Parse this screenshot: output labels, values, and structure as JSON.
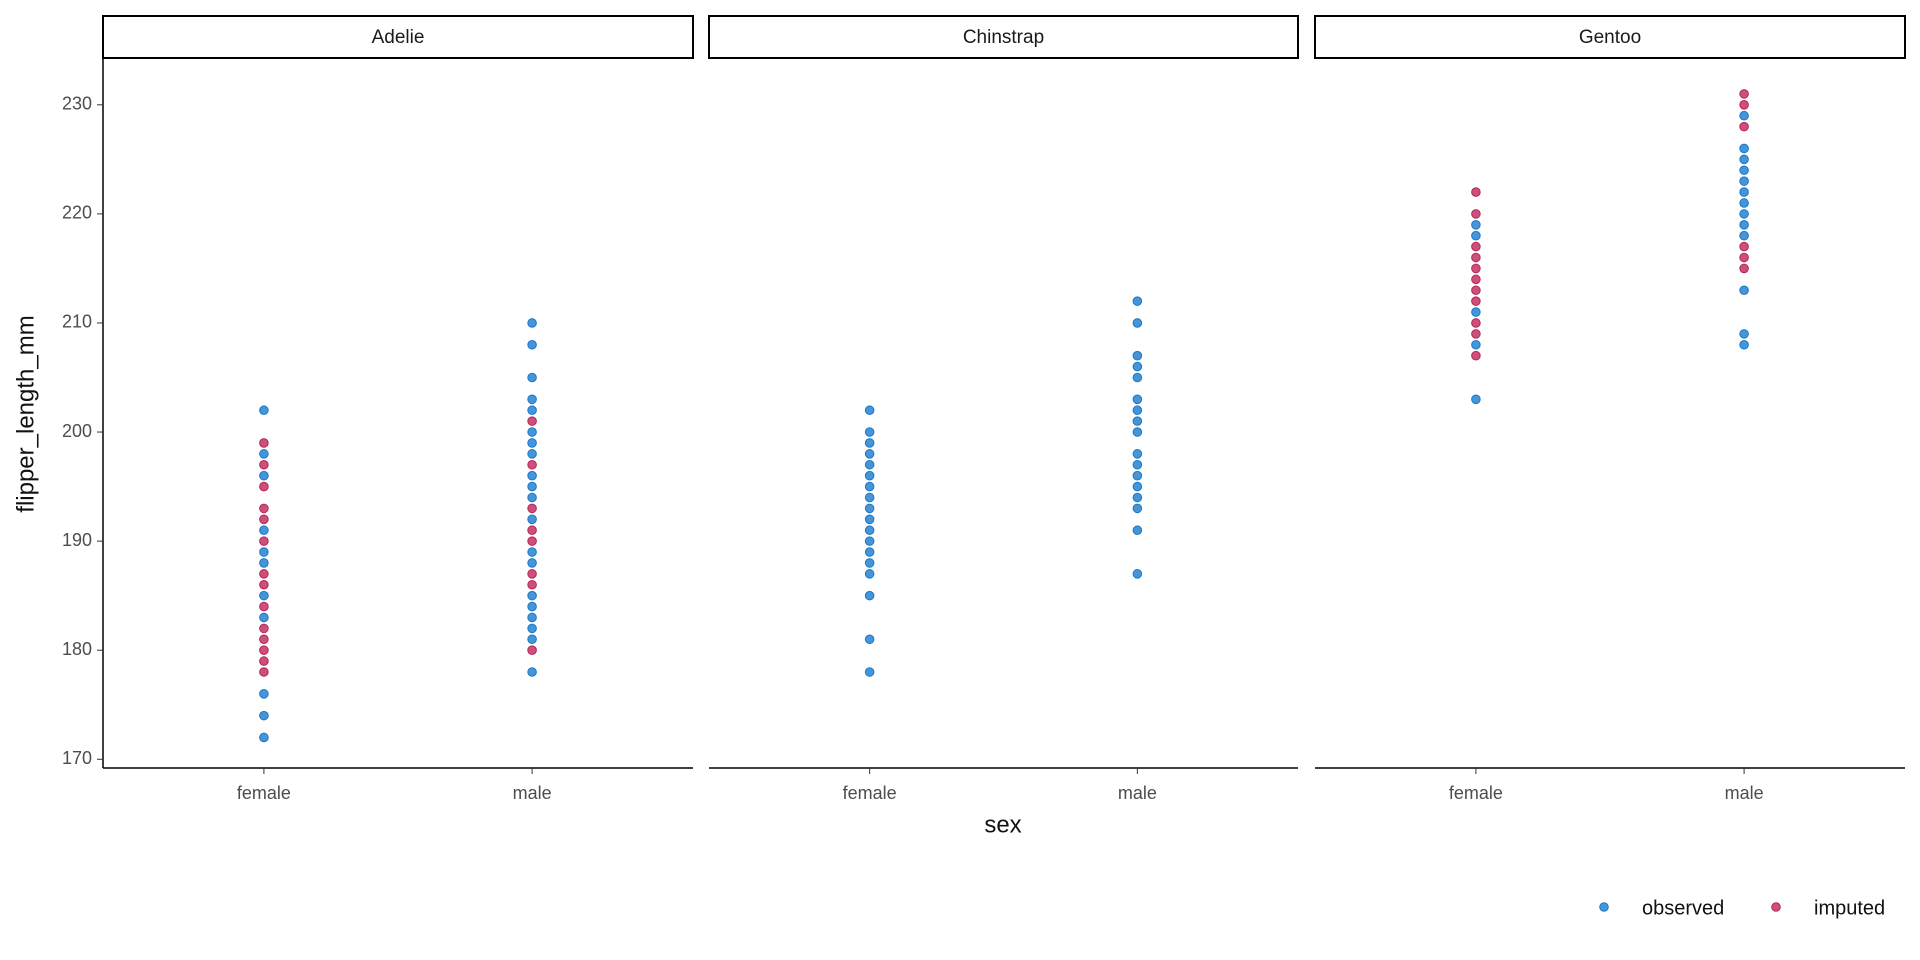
{
  "chart_data": {
    "type": "strip",
    "x_label": "sex",
    "y_label": "flipper_length_mm",
    "categories": [
      "female",
      "male"
    ],
    "ylim": [
      169.2,
      234.2
    ],
    "yticks": [
      170,
      180,
      190,
      200,
      210,
      220,
      230
    ],
    "series": [
      {
        "name": "observed",
        "color": "#0a72c8"
      },
      {
        "name": "imputed",
        "color": "#b8174f"
      }
    ],
    "facets": [
      {
        "title": "Adelie",
        "values": [
          [
            [
              202,
              198,
              196,
              191,
              189,
              188,
              185,
              183,
              176,
              174,
              172
            ],
            [
              210,
              208,
              205,
              203,
              202,
              200,
              199,
              198,
              196,
              195,
              194,
              192,
              189,
              188,
              185,
              184,
              183,
              182,
              181,
              178
            ]
          ],
          [
            [
              199,
              197,
              195,
              193,
              192,
              190,
              187,
              186,
              184,
              182,
              181,
              180,
              179,
              178
            ],
            [
              201,
              197,
              193,
              191,
              190,
              187,
              186,
              180
            ]
          ]
        ]
      },
      {
        "title": "Chinstrap",
        "values": [
          [
            [
              202,
              200,
              199,
              198,
              197,
              196,
              195,
              194,
              193,
              192,
              191,
              190,
              189,
              188,
              187,
              185,
              181,
              178
            ],
            [
              212,
              210,
              207,
              206,
              205,
              203,
              202,
              201,
              200,
              198,
              197,
              196,
              195,
              194,
              193,
              191,
              187
            ]
          ],
          [
            [],
            []
          ]
        ]
      },
      {
        "title": "Gentoo",
        "values": [
          [
            [
              219,
              218,
              211,
              208,
              203
            ],
            [
              229,
              226,
              225,
              224,
              223,
              222,
              221,
              220,
              219,
              218,
              213,
              209,
              208
            ]
          ],
          [
            [
              222,
              220,
              217,
              216,
              215,
              214,
              213,
              212,
              210,
              209,
              207
            ],
            [
              231,
              230,
              228,
              217,
              216,
              215
            ]
          ]
        ]
      }
    ]
  }
}
